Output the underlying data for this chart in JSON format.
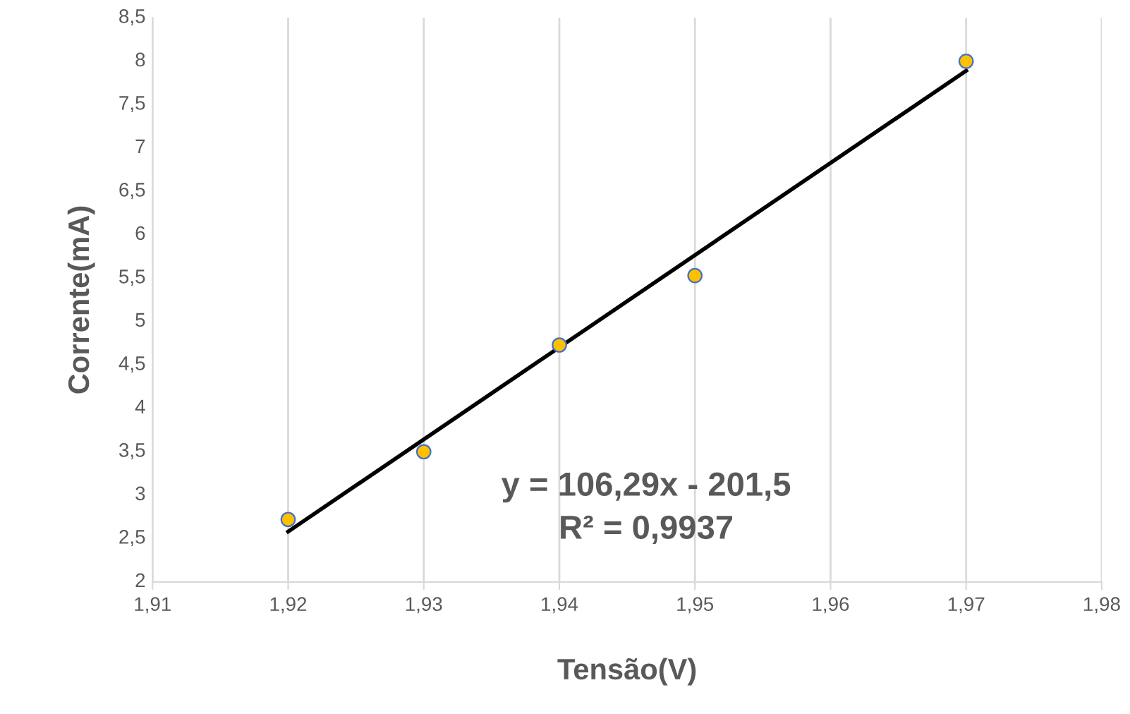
{
  "chart_data": {
    "type": "scatter",
    "xlabel": "Tensão(V)",
    "ylabel": "Corrente(mA)",
    "series": [
      {
        "type": "scatter",
        "color": "#ffc000",
        "x": [
          1.92,
          1.93,
          1.94,
          1.95,
          1.97
        ],
        "values": [
          2.72,
          3.5,
          4.73,
          5.53,
          8.0
        ]
      },
      {
        "type": "line",
        "marker": "none",
        "color": "#000000",
        "x": [
          1.92,
          1.97
        ],
        "values": [
          2.58,
          7.89
        ]
      }
    ],
    "annotations": [
      "y = 106,29x - 201,5\nR² = 0,9937"
    ],
    "xlim": [
      1.91,
      1.98
    ],
    "ylim": [
      2,
      8.5
    ],
    "xticks": [
      {
        "value": 1.91,
        "label": "1,91"
      },
      {
        "value": 1.92,
        "label": "1,92"
      },
      {
        "value": 1.93,
        "label": "1,93"
      },
      {
        "value": 1.94,
        "label": "1,94"
      },
      {
        "value": 1.95,
        "label": "1,95"
      },
      {
        "value": 1.96,
        "label": "1,96"
      },
      {
        "value": 1.97,
        "label": "1,97"
      },
      {
        "value": 1.98,
        "label": "1,98"
      }
    ],
    "yticks": [
      2,
      {
        "value": 2.5,
        "label": "2,5"
      },
      3,
      {
        "value": 3.5,
        "label": "3,5"
      },
      4,
      {
        "value": 4.5,
        "label": "4,5"
      },
      5,
      {
        "value": 5.5,
        "label": "5,5"
      },
      6,
      {
        "value": 6.5,
        "label": "6,5"
      },
      7,
      {
        "value": 7.5,
        "label": "7,5"
      },
      8,
      {
        "value": 8.5,
        "label": "8,5"
      }
    ],
    "grid": "x",
    "marker": "circle",
    "line_style": "solid",
    "legend": false
  }
}
